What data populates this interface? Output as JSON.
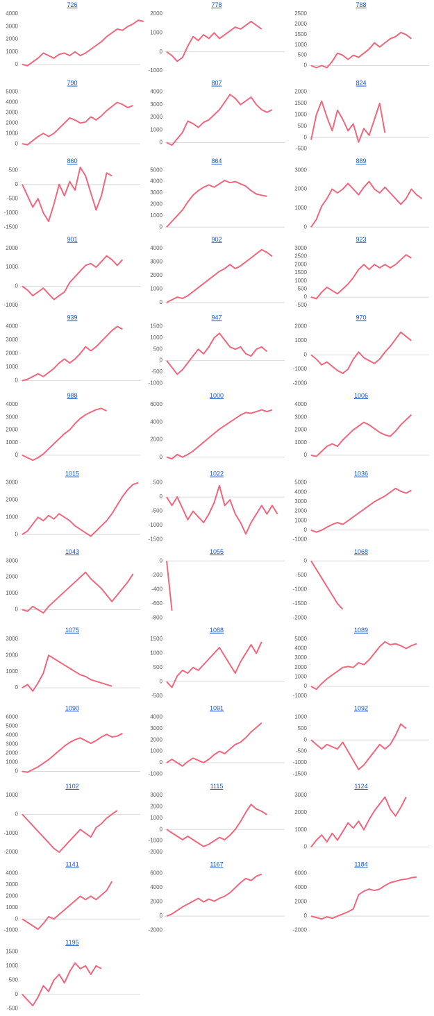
{
  "chart_data": [
    {
      "type": "line",
      "title": "726",
      "color": "#f0677d",
      "ylim": [
        -500,
        4000
      ],
      "yticks": [
        0,
        1000,
        2000,
        3000,
        4000
      ],
      "values": [
        0,
        -100,
        200,
        500,
        900,
        700,
        500,
        800,
        900,
        700,
        1000,
        700,
        900,
        1200,
        1500,
        1800,
        2200,
        2500,
        2800,
        2700,
        3000,
        3200,
        3500,
        3400
      ]
    },
    {
      "type": "line",
      "title": "778",
      "color": "#f0677d",
      "ylim": [
        -1000,
        2000
      ],
      "yticks": [
        -1000,
        0,
        1000,
        2000
      ],
      "values": [
        0,
        -200,
        -500,
        -300,
        300,
        800,
        600,
        900,
        700,
        1000,
        700,
        900,
        1100,
        1300,
        1200,
        1400,
        1600,
        1400,
        1200
      ]
    },
    {
      "type": "line",
      "title": "788",
      "color": "#f0677d",
      "ylim": [
        -250,
        2500
      ],
      "yticks": [
        0,
        500,
        1000,
        1500,
        2000,
        2500
      ],
      "values": [
        0,
        -100,
        0,
        -100,
        200,
        600,
        500,
        300,
        500,
        400,
        600,
        800,
        1100,
        900,
        1100,
        1300,
        1400,
        1600,
        1500,
        1300
      ]
    },
    {
      "type": "line",
      "title": "790",
      "color": "#f0677d",
      "ylim": [
        -500,
        5000
      ],
      "yticks": [
        0,
        1000,
        2000,
        3000,
        4000,
        5000
      ],
      "values": [
        0,
        -100,
        300,
        700,
        1000,
        700,
        1000,
        1500,
        2000,
        2500,
        2300,
        2000,
        2100,
        2600,
        2300,
        2700,
        3200,
        3600,
        4000,
        3800,
        3500,
        3700
      ]
    },
    {
      "type": "line",
      "title": "807",
      "color": "#f0677d",
      "ylim": [
        -500,
        4000
      ],
      "yticks": [
        0,
        1000,
        2000,
        3000,
        4000
      ],
      "values": [
        0,
        -200,
        300,
        800,
        1700,
        1500,
        1200,
        1600,
        1800,
        2200,
        2600,
        3200,
        3800,
        3500,
        3000,
        3300,
        3600,
        3000,
        2600,
        2400,
        2600
      ]
    },
    {
      "type": "line",
      "title": "824",
      "color": "#f0677d",
      "ylim": [
        -500,
        2000
      ],
      "yticks": [
        -500,
        0,
        500,
        1000,
        1500,
        2000
      ],
      "values": [
        -100,
        1000,
        1600,
        900,
        300,
        1200,
        800,
        300,
        600,
        -200,
        400,
        100,
        800,
        1500,
        200
      ]
    },
    {
      "type": "line",
      "title": "860",
      "color": "#f0677d",
      "ylim": [
        -1500,
        500
      ],
      "yticks": [
        -1500,
        -1000,
        -500,
        0,
        500
      ],
      "values": [
        0,
        -400,
        -800,
        -500,
        -1000,
        -1300,
        -700,
        0,
        -400,
        100,
        -200,
        600,
        300,
        -300,
        -900,
        -400,
        400,
        300
      ]
    },
    {
      "type": "line",
      "title": "864",
      "color": "#f0677d",
      "ylim": [
        0,
        5000
      ],
      "yticks": [
        0,
        1000,
        2000,
        3000,
        4000,
        5000
      ],
      "values": [
        0,
        500,
        1000,
        1500,
        2200,
        2800,
        3200,
        3500,
        3700,
        3500,
        3800,
        4100,
        3900,
        4000,
        3800,
        3600,
        3200,
        2900,
        2800,
        2700
      ]
    },
    {
      "type": "line",
      "title": "889",
      "color": "#f0677d",
      "ylim": [
        0,
        3000
      ],
      "yticks": [
        0,
        1000,
        2000,
        3000
      ],
      "values": [
        0,
        400,
        1100,
        1500,
        2000,
        1800,
        2000,
        2300,
        2000,
        1700,
        2100,
        2400,
        2000,
        1800,
        2100,
        1800,
        1500,
        1200,
        1500,
        2000,
        1700,
        1500
      ]
    },
    {
      "type": "line",
      "title": "901",
      "color": "#f0677d",
      "ylim": [
        -1000,
        2000
      ],
      "yticks": [
        -1000,
        0,
        1000,
        2000
      ],
      "values": [
        0,
        -200,
        -500,
        -300,
        -100,
        -400,
        -700,
        -500,
        -300,
        200,
        500,
        800,
        1100,
        1200,
        1000,
        1300,
        1600,
        1400,
        1100,
        1400
      ]
    },
    {
      "type": "line",
      "title": "902",
      "color": "#f0677d",
      "ylim": [
        -200,
        4000
      ],
      "yticks": [
        0,
        1000,
        2000,
        3000,
        4000
      ],
      "values": [
        0,
        200,
        400,
        300,
        500,
        800,
        1100,
        1400,
        1700,
        2000,
        2300,
        2500,
        2800,
        2500,
        2700,
        3000,
        3300,
        3600,
        3900,
        3700,
        3400
      ]
    },
    {
      "type": "line",
      "title": "923",
      "color": "#f0677d",
      "ylim": [
        -500,
        3000
      ],
      "yticks": [
        -500,
        0,
        500,
        1000,
        1500,
        2000,
        2500,
        3000
      ],
      "values": [
        0,
        -100,
        300,
        600,
        400,
        200,
        500,
        800,
        1200,
        1700,
        2000,
        1700,
        2000,
        1800,
        2000,
        1800,
        2000,
        2300,
        2600,
        2400
      ]
    },
    {
      "type": "line",
      "title": "939",
      "color": "#f0677d",
      "ylim": [
        -200,
        4000
      ],
      "yticks": [
        0,
        1000,
        2000,
        3000,
        4000
      ],
      "values": [
        0,
        100,
        300,
        500,
        300,
        600,
        900,
        1300,
        1600,
        1300,
        1600,
        2000,
        2500,
        2200,
        2500,
        2900,
        3300,
        3700,
        4000,
        3800
      ]
    },
    {
      "type": "line",
      "title": "947",
      "color": "#f0677d",
      "ylim": [
        -1000,
        1500
      ],
      "yticks": [
        -1000,
        -500,
        0,
        500,
        1000,
        1500
      ],
      "values": [
        0,
        -300,
        -600,
        -400,
        -100,
        200,
        500,
        300,
        600,
        1000,
        1200,
        900,
        600,
        500,
        600,
        300,
        200,
        500,
        600,
        400
      ]
    },
    {
      "type": "line",
      "title": "970",
      "color": "#f0677d",
      "ylim": [
        -2000,
        2000
      ],
      "yticks": [
        -2000,
        -1000,
        0,
        1000,
        2000
      ],
      "values": [
        0,
        -300,
        -700,
        -500,
        -800,
        -1100,
        -1300,
        -1000,
        -300,
        200,
        -200,
        -400,
        -600,
        -300,
        200,
        600,
        1100,
        1600,
        1300,
        1000
      ]
    },
    {
      "type": "line",
      "title": "988",
      "color": "#f0677d",
      "ylim": [
        -500,
        4000
      ],
      "yticks": [
        0,
        1000,
        2000,
        3000,
        4000
      ],
      "values": [
        0,
        -200,
        -400,
        -200,
        100,
        500,
        900,
        1300,
        1700,
        2000,
        2500,
        2900,
        3200,
        3400,
        3600,
        3700,
        3500
      ]
    },
    {
      "type": "line",
      "title": "1000",
      "color": "#f0677d",
      "ylim": [
        -500,
        6000
      ],
      "yticks": [
        0,
        2000,
        4000,
        6000
      ],
      "values": [
        0,
        -200,
        300,
        0,
        300,
        700,
        1200,
        1700,
        2200,
        2700,
        3200,
        3600,
        4000,
        4400,
        4800,
        5100,
        5000,
        5200,
        5400,
        5200,
        5400
      ]
    },
    {
      "type": "line",
      "title": "1006",
      "color": "#f0677d",
      "ylim": [
        -500,
        4000
      ],
      "yticks": [
        0,
        1000,
        2000,
        3000,
        4000
      ],
      "values": [
        0,
        -100,
        300,
        700,
        900,
        700,
        1200,
        1600,
        2000,
        2300,
        2600,
        2400,
        2100,
        1800,
        1600,
        1500,
        1900,
        2400,
        2800,
        3200
      ]
    },
    {
      "type": "line",
      "title": "1015",
      "color": "#f0677d",
      "ylim": [
        -300,
        3000
      ],
      "yticks": [
        0,
        1000,
        2000,
        3000
      ],
      "values": [
        0,
        200,
        600,
        1000,
        800,
        1100,
        900,
        1200,
        1000,
        800,
        500,
        300,
        100,
        -100,
        200,
        500,
        800,
        1200,
        1700,
        2200,
        2600,
        2900,
        3000
      ]
    },
    {
      "type": "line",
      "title": "1022",
      "color": "#f0677d",
      "ylim": [
        -1500,
        500
      ],
      "yticks": [
        -1500,
        -1000,
        -500,
        0,
        500
      ],
      "values": [
        0,
        -300,
        0,
        -400,
        -800,
        -500,
        -700,
        -900,
        -600,
        -200,
        400,
        -300,
        -100,
        -600,
        -900,
        -1300,
        -900,
        -600,
        -300,
        -600,
        -300,
        -600
      ]
    },
    {
      "type": "line",
      "title": "1036",
      "color": "#f0677d",
      "ylim": [
        -1000,
        5000
      ],
      "yticks": [
        -1000,
        0,
        1000,
        2000,
        3000,
        4000,
        5000
      ],
      "values": [
        0,
        -200,
        0,
        300,
        600,
        800,
        600,
        1000,
        1400,
        1800,
        2200,
        2600,
        3000,
        3300,
        3600,
        4000,
        4400,
        4100,
        3900,
        4200
      ]
    },
    {
      "type": "line",
      "title": "1043",
      "color": "#f0677d",
      "ylim": [
        -500,
        3000
      ],
      "yticks": [
        0,
        1000,
        2000,
        3000
      ],
      "values": [
        0,
        -100,
        200,
        0,
        -200,
        200,
        500,
        800,
        1100,
        1400,
        1700,
        2000,
        2300,
        1900,
        1600,
        1300,
        900,
        500,
        900,
        1300,
        1700,
        2200
      ]
    },
    {
      "type": "line",
      "title": "1055",
      "color": "#f0677d",
      "ylim": [
        -800,
        0
      ],
      "yticks": [
        -800,
        -600,
        -400,
        -200,
        0
      ],
      "values": [
        0,
        -700
      ]
    },
    {
      "type": "line",
      "title": "1068",
      "color": "#f0677d",
      "ylim": [
        -2000,
        0
      ],
      "yticks": [
        -2000,
        -1500,
        -1000,
        -500,
        0
      ],
      "values": [
        0,
        -300,
        -600,
        -900,
        -1200,
        -1500,
        -1700
      ]
    },
    {
      "type": "line",
      "title": "1075",
      "color": "#f0677d",
      "ylim": [
        -500,
        3000
      ],
      "yticks": [
        0,
        1000,
        2000,
        3000
      ],
      "values": [
        0,
        200,
        -200,
        300,
        900,
        2000,
        1800,
        1600,
        1400,
        1200,
        1000,
        800,
        700,
        500,
        400,
        300,
        200,
        100
      ]
    },
    {
      "type": "line",
      "title": "1088",
      "color": "#f0677d",
      "ylim": [
        -500,
        1500
      ],
      "yticks": [
        -500,
        0,
        500,
        1000,
        1500
      ],
      "values": [
        0,
        -200,
        200,
        400,
        300,
        500,
        400,
        600,
        800,
        1000,
        1200,
        900,
        600,
        300,
        700,
        1000,
        1300,
        1000,
        1400
      ]
    },
    {
      "type": "line",
      "title": "1089",
      "color": "#f0677d",
      "ylim": [
        -1000,
        5000
      ],
      "yticks": [
        -1000,
        0,
        1000,
        2000,
        3000,
        4000,
        5000
      ],
      "values": [
        0,
        -300,
        300,
        800,
        1200,
        1600,
        2000,
        2100,
        2000,
        2500,
        2300,
        2800,
        3500,
        4200,
        4700,
        4400,
        4500,
        4300,
        4000,
        4300,
        4500
      ]
    },
    {
      "type": "line",
      "title": "1090",
      "color": "#f0677d",
      "ylim": [
        -300,
        6000
      ],
      "yticks": [
        0,
        1000,
        2000,
        3000,
        4000,
        5000,
        6000
      ],
      "values": [
        0,
        -100,
        200,
        500,
        900,
        1300,
        1800,
        2300,
        2800,
        3200,
        3500,
        3700,
        3400,
        3100,
        3400,
        3800,
        4100,
        3800,
        3900,
        4200
      ]
    },
    {
      "type": "line",
      "title": "1091",
      "color": "#f0677d",
      "ylim": [
        -1000,
        4000
      ],
      "yticks": [
        -1000,
        0,
        1000,
        2000,
        3000,
        4000
      ],
      "values": [
        0,
        300,
        0,
        -300,
        100,
        400,
        200,
        0,
        300,
        700,
        1000,
        800,
        1200,
        1600,
        1800,
        2200,
        2700,
        3100,
        3500
      ]
    },
    {
      "type": "line",
      "title": "1092",
      "color": "#f0677d",
      "ylim": [
        -1500,
        1000
      ],
      "yticks": [
        -1500,
        -1000,
        -500,
        0,
        500,
        1000
      ],
      "values": [
        0,
        -200,
        -400,
        -200,
        -300,
        -400,
        -100,
        -500,
        -900,
        -1300,
        -1100,
        -800,
        -500,
        -200,
        -400,
        -200,
        200,
        700,
        500
      ]
    },
    {
      "type": "line",
      "title": "1102",
      "color": "#f0677d",
      "ylim": [
        -2000,
        1000
      ],
      "yticks": [
        -2000,
        -1000,
        0,
        1000
      ],
      "values": [
        0,
        -300,
        -600,
        -900,
        -1200,
        -1500,
        -1800,
        -2000,
        -1700,
        -1400,
        -1100,
        -800,
        -1000,
        -1200,
        -700,
        -500,
        -200,
        0,
        200
      ]
    },
    {
      "type": "line",
      "title": "1115",
      "color": "#f0677d",
      "ylim": [
        -2000,
        3000
      ],
      "yticks": [
        -2000,
        -1000,
        0,
        1000,
        2000,
        3000
      ],
      "values": [
        0,
        -300,
        -600,
        -900,
        -600,
        -900,
        -1200,
        -1500,
        -1300,
        -1000,
        -700,
        -900,
        -500,
        0,
        700,
        1500,
        2200,
        1800,
        1600,
        1300
      ]
    },
    {
      "type": "line",
      "title": "1124",
      "color": "#f0677d",
      "ylim": [
        -300,
        3000
      ],
      "yticks": [
        0,
        1000,
        2000,
        3000
      ],
      "values": [
        0,
        400,
        700,
        300,
        800,
        400,
        900,
        1400,
        1100,
        1500,
        1000,
        1600,
        2100,
        2500,
        2900,
        2200,
        1800,
        2300,
        2900
      ]
    },
    {
      "type": "line",
      "title": "1141",
      "color": "#f0677d",
      "ylim": [
        -1000,
        4000
      ],
      "yticks": [
        -1000,
        0,
        1000,
        2000,
        3000,
        4000
      ],
      "values": [
        0,
        -300,
        -600,
        -900,
        -400,
        200,
        0,
        400,
        800,
        1200,
        1600,
        2000,
        1700,
        2000,
        1700,
        2100,
        2500,
        3300
      ]
    },
    {
      "type": "line",
      "title": "1167",
      "color": "#f0677d",
      "ylim": [
        -2000,
        6000
      ],
      "yticks": [
        -2000,
        0,
        2000,
        4000,
        6000
      ],
      "values": [
        0,
        300,
        800,
        1300,
        1700,
        2100,
        2500,
        2000,
        2400,
        2100,
        2500,
        2800,
        3300,
        4000,
        4700,
        5300,
        5000,
        5600,
        5900
      ]
    },
    {
      "type": "line",
      "title": "1184",
      "color": "#f0677d",
      "ylim": [
        -2000,
        6000
      ],
      "yticks": [
        -2000,
        0,
        2000,
        4000,
        6000
      ],
      "values": [
        0,
        -200,
        -400,
        -100,
        -300,
        0,
        300,
        600,
        1000,
        3000,
        3500,
        3800,
        3600,
        3800,
        4300,
        4700,
        4900,
        5100,
        5200,
        5400,
        5500
      ]
    },
    {
      "type": "line",
      "title": "1195",
      "color": "#f0677d",
      "ylim": [
        -500,
        1500
      ],
      "yticks": [
        -500,
        0,
        500,
        1000,
        1500
      ],
      "values": [
        0,
        -200,
        -400,
        -100,
        300,
        100,
        500,
        700,
        400,
        800,
        1100,
        900,
        1000,
        700,
        1000,
        900
      ]
    }
  ]
}
